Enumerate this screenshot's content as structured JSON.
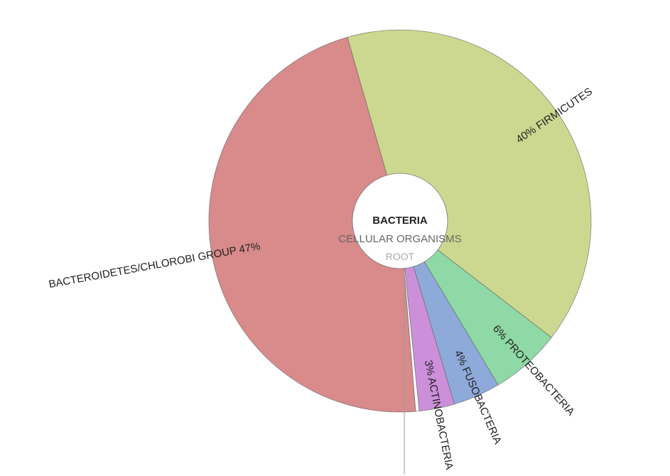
{
  "chart_data": {
    "type": "pie",
    "title": "",
    "center": {
      "current": "BACTERIA",
      "parent": "CELLULAR ORGANISMS",
      "root": "ROOT"
    },
    "slices": [
      {
        "name": "FIRMICUTES",
        "label": "40%",
        "value": 40,
        "color": "#ccd88f"
      },
      {
        "name": "PROTEOBACTERIA",
        "label": "6%",
        "value": 6,
        "color": "#8ed9a6"
      },
      {
        "name": "FUSOBACTERIA",
        "label": "4%",
        "value": 4,
        "color": "#8eaad9"
      },
      {
        "name": "ACTINOBACTERIA",
        "label": "3%",
        "value": 3,
        "color": "#cc8fd9"
      },
      {
        "name": "",
        "label": "",
        "value": 0.3,
        "color": "#ffffff"
      },
      {
        "name": "BACTEROIDETES/CHLOROBI GROUP",
        "label": "47%",
        "value": 47,
        "color": "#d98a8a"
      }
    ]
  }
}
